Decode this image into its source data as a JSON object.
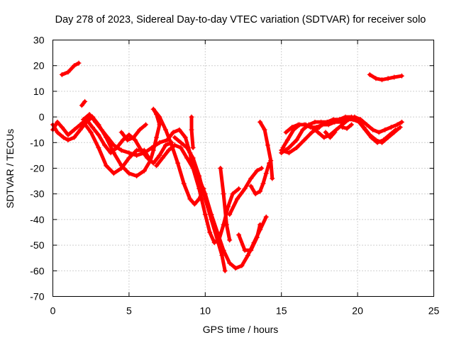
{
  "chart_data": {
    "type": "scatter",
    "title": "Day 278 of 2023, Sidereal Day-to-day VTEC variation (SDTVAR) for receiver solo",
    "xlabel": "GPS time / hours",
    "ylabel": "SDTVAR / TECUs",
    "xlim": [
      0,
      25
    ],
    "ylim": [
      -70,
      30
    ],
    "xticks": [
      0,
      5,
      10,
      15,
      20,
      25
    ],
    "yticks": [
      -70,
      -60,
      -50,
      -40,
      -30,
      -20,
      -10,
      0,
      10,
      20,
      30
    ],
    "xtick_labels": [
      "0",
      "5",
      "10",
      "15",
      "20",
      "25"
    ],
    "ytick_labels": [
      "-70",
      "-60",
      "-50",
      "-40",
      "-30",
      "-20",
      "-10",
      "0",
      "10",
      "20",
      "30"
    ],
    "grid": true,
    "legend": "none",
    "marker": "+",
    "color": "#ff0000",
    "series": [
      {
        "name": "track-1",
        "points": [
          [
            0.6,
            16.5
          ],
          [
            1.0,
            17.5
          ],
          [
            1.4,
            20
          ],
          [
            1.7,
            21
          ]
        ]
      },
      {
        "name": "track-2",
        "points": [
          [
            1.9,
            4.5
          ],
          [
            2.1,
            6
          ]
        ]
      },
      {
        "name": "track-3",
        "points": [
          [
            0.0,
            -3
          ],
          [
            0.3,
            -6
          ],
          [
            0.7,
            -8
          ],
          [
            1.0,
            -9
          ],
          [
            1.4,
            -8
          ],
          [
            1.8,
            -5
          ],
          [
            2.2,
            -2
          ],
          [
            2.6,
            0
          ]
        ]
      },
      {
        "name": "track-4",
        "points": [
          [
            0.0,
            -5
          ],
          [
            0.3,
            -2
          ],
          [
            0.6,
            -4
          ],
          [
            1.0,
            -7
          ],
          [
            1.4,
            -5
          ],
          [
            1.8,
            -3
          ],
          [
            2.2,
            -1
          ],
          [
            2.6,
            0
          ],
          [
            3.0,
            -3
          ],
          [
            3.5,
            -8
          ],
          [
            4.0,
            -14
          ],
          [
            4.5,
            -19
          ],
          [
            5.0,
            -22
          ],
          [
            5.5,
            -23
          ],
          [
            6.0,
            -21
          ],
          [
            6.4,
            -17
          ],
          [
            6.6,
            -13
          ],
          [
            6.8,
            -8
          ],
          [
            7.0,
            -3
          ],
          [
            6.8,
            1
          ],
          [
            6.6,
            3
          ]
        ]
      },
      {
        "name": "track-5",
        "points": [
          [
            2.0,
            -2
          ],
          [
            2.5,
            -6
          ],
          [
            3.0,
            -12
          ],
          [
            3.5,
            -19
          ],
          [
            4.0,
            -22
          ],
          [
            4.5,
            -20
          ],
          [
            5.0,
            -16
          ],
          [
            5.5,
            -13
          ],
          [
            6.0,
            -13
          ],
          [
            6.3,
            -16
          ]
        ]
      },
      {
        "name": "track-6",
        "points": [
          [
            2.0,
            -1
          ],
          [
            2.4,
            1
          ],
          [
            2.8,
            -2
          ],
          [
            3.2,
            -5
          ],
          [
            3.6,
            -8
          ],
          [
            4.0,
            -11
          ],
          [
            4.5,
            -13
          ],
          [
            5.0,
            -14
          ],
          [
            5.5,
            -15
          ],
          [
            6.0,
            -14
          ],
          [
            6.5,
            -12
          ],
          [
            7.0,
            -10
          ],
          [
            7.5,
            -9
          ]
        ]
      },
      {
        "name": "track-7",
        "points": [
          [
            2.2,
            -1
          ],
          [
            2.6,
            -4
          ],
          [
            3.0,
            -7
          ],
          [
            3.4,
            -11
          ],
          [
            3.8,
            -14
          ],
          [
            4.2,
            -12
          ],
          [
            4.6,
            -9
          ],
          [
            5.0,
            -7
          ],
          [
            5.4,
            -9
          ],
          [
            5.8,
            -13
          ],
          [
            6.2,
            -16
          ],
          [
            6.6,
            -18
          ],
          [
            7.0,
            -15
          ],
          [
            7.4,
            -11
          ],
          [
            7.8,
            -10
          ]
        ]
      },
      {
        "name": "track-8",
        "points": [
          [
            4.5,
            -6
          ],
          [
            4.9,
            -9
          ],
          [
            5.3,
            -8
          ],
          [
            5.7,
            -5
          ],
          [
            6.1,
            -3
          ]
        ]
      },
      {
        "name": "track-9",
        "points": [
          [
            6.6,
            3
          ],
          [
            7.0,
            0
          ],
          [
            7.4,
            -5
          ],
          [
            7.8,
            -11
          ],
          [
            8.2,
            -18
          ],
          [
            8.6,
            -26
          ],
          [
            9.0,
            -32
          ],
          [
            9.3,
            -34
          ],
          [
            9.6,
            -32
          ],
          [
            9.9,
            -28
          ]
        ]
      },
      {
        "name": "track-10",
        "points": [
          [
            6.8,
            -19
          ],
          [
            7.2,
            -16
          ],
          [
            7.6,
            -13
          ],
          [
            8.0,
            -11
          ],
          [
            8.4,
            -12
          ],
          [
            8.8,
            -16
          ],
          [
            9.2,
            -20
          ],
          [
            9.6,
            -24
          ],
          [
            10.0,
            -30
          ],
          [
            10.4,
            -38
          ],
          [
            10.8,
            -45
          ],
          [
            11.2,
            -52
          ],
          [
            11.6,
            -57
          ],
          [
            12.0,
            -59
          ],
          [
            12.4,
            -58
          ],
          [
            12.8,
            -54
          ],
          [
            13.2,
            -49
          ],
          [
            13.6,
            -44
          ],
          [
            14.0,
            -39
          ]
        ]
      },
      {
        "name": "track-11",
        "points": [
          [
            7.5,
            -9
          ],
          [
            7.9,
            -6
          ],
          [
            8.3,
            -5
          ],
          [
            8.7,
            -8
          ],
          [
            9.0,
            -14
          ],
          [
            9.2,
            -20
          ],
          [
            9.6,
            -28
          ],
          [
            10.0,
            -38
          ],
          [
            10.3,
            -45
          ],
          [
            10.6,
            -49
          ],
          [
            10.9,
            -48
          ],
          [
            11.2,
            -42
          ],
          [
            11.5,
            -35
          ],
          [
            11.8,
            -30
          ],
          [
            12.2,
            -28
          ]
        ]
      },
      {
        "name": "track-12",
        "points": [
          [
            8.0,
            -8
          ],
          [
            8.4,
            -10
          ],
          [
            8.8,
            -12
          ],
          [
            9.2,
            -16
          ],
          [
            9.6,
            -23
          ],
          [
            10.0,
            -32
          ],
          [
            10.4,
            -40
          ],
          [
            10.8,
            -48
          ],
          [
            11.1,
            -54
          ],
          [
            11.3,
            -60
          ]
        ]
      },
      {
        "name": "track-13",
        "points": [
          [
            9.1,
            0
          ],
          [
            9.1,
            -5
          ],
          [
            9.2,
            -12
          ]
        ]
      },
      {
        "name": "track-14",
        "points": [
          [
            11.0,
            -20
          ],
          [
            11.2,
            -30
          ],
          [
            11.4,
            -42
          ],
          [
            11.6,
            -48
          ]
        ]
      },
      {
        "name": "track-15",
        "points": [
          [
            11.6,
            -38
          ],
          [
            12.1,
            -32
          ],
          [
            12.6,
            -28
          ],
          [
            13.0,
            -24
          ],
          [
            13.4,
            -21
          ],
          [
            13.7,
            -20
          ]
        ]
      },
      {
        "name": "track-16",
        "points": [
          [
            12.2,
            -46
          ],
          [
            12.6,
            -52
          ],
          [
            13.0,
            -52
          ],
          [
            13.4,
            -47
          ],
          [
            13.6,
            -42
          ]
        ]
      },
      {
        "name": "track-17",
        "points": [
          [
            13.0,
            -27
          ],
          [
            13.3,
            -30
          ],
          [
            13.6,
            -29
          ],
          [
            13.8,
            -26
          ],
          [
            14.0,
            -22
          ],
          [
            14.2,
            -18
          ]
        ]
      },
      {
        "name": "track-18",
        "points": [
          [
            13.6,
            -2
          ],
          [
            13.9,
            -5
          ],
          [
            14.1,
            -11
          ],
          [
            14.3,
            -17
          ],
          [
            14.4,
            -24
          ]
        ]
      },
      {
        "name": "track-19",
        "points": [
          [
            15.1,
            -12
          ],
          [
            15.4,
            -9
          ],
          [
            15.8,
            -5
          ],
          [
            16.2,
            -3
          ],
          [
            16.6,
            -3
          ],
          [
            17.0,
            -4
          ],
          [
            17.4,
            -6
          ],
          [
            17.8,
            -8
          ],
          [
            18.2,
            -7
          ],
          [
            18.6,
            -5
          ],
          [
            19.0,
            -3
          ],
          [
            19.4,
            -1
          ],
          [
            19.8,
            0
          ],
          [
            20.2,
            -1
          ],
          [
            20.6,
            -3
          ],
          [
            21.0,
            -5
          ],
          [
            21.4,
            -6
          ],
          [
            21.8,
            -5
          ],
          [
            22.2,
            -4
          ],
          [
            22.6,
            -3
          ],
          [
            22.9,
            -2
          ]
        ]
      },
      {
        "name": "track-20",
        "points": [
          [
            15.0,
            -14
          ],
          [
            15.5,
            -12
          ],
          [
            16.0,
            -9
          ],
          [
            16.4,
            -5
          ],
          [
            16.8,
            -3
          ],
          [
            17.2,
            -2
          ],
          [
            17.6,
            -2
          ],
          [
            18.0,
            -2
          ],
          [
            18.4,
            -1
          ],
          [
            18.8,
            -1
          ],
          [
            19.2,
            0
          ],
          [
            19.6,
            0
          ],
          [
            20.0,
            -1
          ],
          [
            20.4,
            -4
          ],
          [
            20.8,
            -7
          ],
          [
            21.2,
            -9
          ],
          [
            21.6,
            -10
          ],
          [
            22.0,
            -8
          ],
          [
            22.4,
            -6
          ],
          [
            22.8,
            -4
          ]
        ]
      },
      {
        "name": "track-21",
        "points": [
          [
            15.3,
            -6
          ],
          [
            15.7,
            -4
          ],
          [
            16.1,
            -3
          ],
          [
            16.5,
            -3
          ],
          [
            16.9,
            -4
          ],
          [
            17.3,
            -4
          ],
          [
            17.7,
            -3
          ],
          [
            18.1,
            -3
          ],
          [
            18.5,
            -2
          ],
          [
            18.9,
            -2
          ],
          [
            19.3,
            -1
          ],
          [
            19.7,
            -1
          ],
          [
            20.1,
            -2
          ],
          [
            20.5,
            -5
          ],
          [
            20.9,
            -8
          ],
          [
            21.3,
            -10
          ],
          [
            21.7,
            -9
          ],
          [
            22.1,
            -7
          ],
          [
            22.5,
            -5
          ]
        ]
      },
      {
        "name": "track-22",
        "points": [
          [
            15.0,
            -13
          ],
          [
            15.5,
            -14
          ],
          [
            16.0,
            -12
          ],
          [
            16.5,
            -9
          ],
          [
            17.0,
            -6
          ],
          [
            17.5,
            -4
          ]
        ]
      },
      {
        "name": "track-23",
        "points": [
          [
            17.9,
            -6
          ],
          [
            18.2,
            -8
          ],
          [
            18.5,
            -6
          ]
        ]
      },
      {
        "name": "track-24",
        "points": [
          [
            19.0,
            -4
          ],
          [
            19.3,
            -4.5
          ],
          [
            19.6,
            -3
          ]
        ]
      },
      {
        "name": "track-25",
        "points": [
          [
            20.8,
            16.5
          ],
          [
            21.2,
            15
          ],
          [
            21.6,
            14.5
          ],
          [
            22.0,
            15
          ],
          [
            22.4,
            15.5
          ],
          [
            22.9,
            16
          ]
        ]
      }
    ]
  }
}
